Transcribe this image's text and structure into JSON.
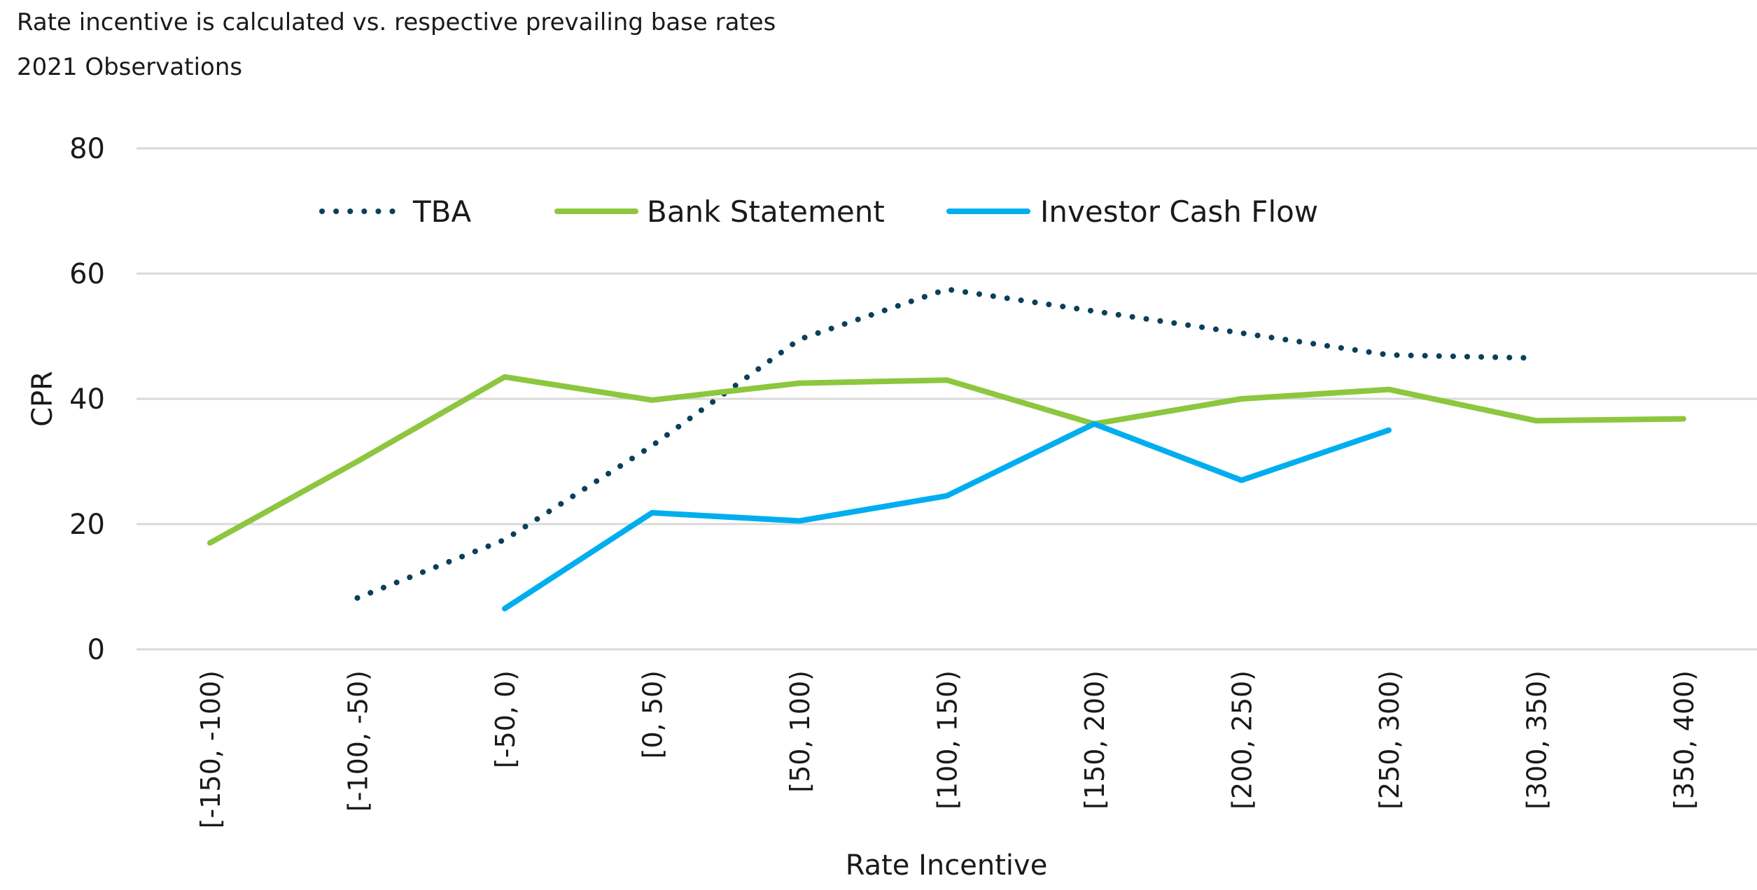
{
  "notes": {
    "line1": "Rate incentive is calculated vs. respective prevailing base rates",
    "line2": "2021 Observations"
  },
  "chart_data": {
    "type": "line",
    "title": "",
    "xlabel": "Rate Incentive",
    "ylabel": "CPR",
    "ylim": [
      0,
      80
    ],
    "yticks": [
      0,
      20,
      40,
      60,
      80
    ],
    "grid": true,
    "legend_position": "top",
    "categories": [
      "[-150, -100)",
      "[-100, -50)",
      "[-50, 0)",
      "[0, 50)",
      "[50, 100)",
      "[100, 150)",
      "[150, 200)",
      "[200, 250)",
      "[250, 300)",
      "[300, 350)",
      "[350, 400)"
    ],
    "series": [
      {
        "name": "TBA",
        "color": "#0b3f5c",
        "style": "dotted",
        "values": [
          null,
          8.2,
          17.5,
          32.5,
          49.5,
          57.5,
          54.0,
          50.5,
          47.0,
          46.5,
          null
        ]
      },
      {
        "name": "Bank Statement",
        "color": "#8dc63f",
        "style": "solid",
        "values": [
          17.0,
          30.0,
          43.5,
          39.8,
          42.5,
          43.0,
          36.0,
          40.0,
          41.5,
          36.5,
          36.8
        ]
      },
      {
        "name": "Investor Cash Flow",
        "color": "#00aeef",
        "style": "solid",
        "values": [
          null,
          null,
          6.5,
          21.8,
          20.5,
          24.5,
          36.0,
          27.0,
          35.0,
          null,
          null
        ]
      }
    ]
  }
}
